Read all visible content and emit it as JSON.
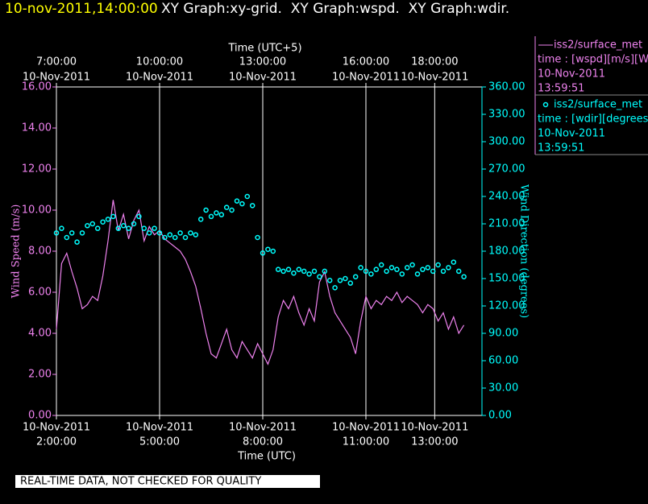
{
  "chart_data": {
    "type": "line",
    "title_time": "10-nov-2011,14:00:00",
    "title": "XY Graph:xy-grid.  XY Graph:wspd.  XY Graph:wdir.",
    "x_label": "Time (UTC)",
    "x2_label": "Time (UTC+5)",
    "y_label": "Wind Speed (m/s)",
    "y2_label": "Wind Direction (degrees)",
    "note": "REAL-TIME DATA, NOT CHECKED FOR QUALITY",
    "grid": true,
    "xlim": [
      2,
      14.375
    ],
    "xticks": [
      {
        "value": 2,
        "label": [
          "10-Nov-2011",
          "2:00:00"
        ]
      },
      {
        "value": 5,
        "label": [
          "10-Nov-2011",
          "5:00:00"
        ]
      },
      {
        "value": 8,
        "label": [
          "10-Nov-2011",
          "8:00:00"
        ]
      },
      {
        "value": 11,
        "label": [
          "10-Nov-2011",
          "11:00:00"
        ]
      },
      {
        "value": 13,
        "label": [
          "10-Nov-2011",
          "13:00:00"
        ]
      }
    ],
    "x2lim": [
      7,
      19.375
    ],
    "x2ticks": [
      {
        "value": 7,
        "label": [
          "7:00:00",
          "10-Nov-2011"
        ]
      },
      {
        "value": 10,
        "label": [
          "10:00:00",
          "10-Nov-2011"
        ]
      },
      {
        "value": 13,
        "label": [
          "13:00:00",
          "10-Nov-2011"
        ]
      },
      {
        "value": 16,
        "label": [
          "16:00:00",
          "10-Nov-2011"
        ]
      },
      {
        "value": 18,
        "label": [
          "18:00:00",
          "10-Nov-2011"
        ]
      }
    ],
    "ylim": [
      0,
      16
    ],
    "yticks": [
      {
        "value": 0,
        "label": "0.00"
      },
      {
        "value": 2,
        "label": "2.00"
      },
      {
        "value": 4,
        "label": "4.00"
      },
      {
        "value": 6,
        "label": "6.00"
      },
      {
        "value": 8,
        "label": "8.00"
      },
      {
        "value": 10,
        "label": "10.00"
      },
      {
        "value": 12,
        "label": "12.00"
      },
      {
        "value": 14,
        "label": "14.00"
      },
      {
        "value": 16,
        "label": "16.00"
      }
    ],
    "y2lim": [
      0,
      360
    ],
    "y2ticks": [
      {
        "value": 0,
        "label": "0.00"
      },
      {
        "value": 30,
        "label": "30.00"
      },
      {
        "value": 60,
        "label": "60.00"
      },
      {
        "value": 90,
        "label": "90.00"
      },
      {
        "value": 120,
        "label": "120.00"
      },
      {
        "value": 150,
        "label": "150.00"
      },
      {
        "value": 180,
        "label": "180.00"
      },
      {
        "value": 210,
        "label": "210.00"
      },
      {
        "value": 240,
        "label": "240.00"
      },
      {
        "value": 270,
        "label": "270.00"
      },
      {
        "value": 300,
        "label": "300.00"
      },
      {
        "value": 330,
        "label": "330.00"
      },
      {
        "value": 360,
        "label": "360.00"
      }
    ],
    "x": [
      2.0,
      2.15,
      2.3,
      2.45,
      2.6,
      2.75,
      2.9,
      3.05,
      3.2,
      3.35,
      3.5,
      3.65,
      3.8,
      3.95,
      4.1,
      4.25,
      4.4,
      4.55,
      4.7,
      4.85,
      5.0,
      5.15,
      5.3,
      5.45,
      5.6,
      5.75,
      5.9,
      6.05,
      6.2,
      6.35,
      6.5,
      6.65,
      6.8,
      6.95,
      7.1,
      7.25,
      7.4,
      7.55,
      7.7,
      7.85,
      8.0,
      8.15,
      8.3,
      8.45,
      8.6,
      8.75,
      8.9,
      9.05,
      9.2,
      9.35,
      9.5,
      9.65,
      9.8,
      9.95,
      10.1,
      10.25,
      10.4,
      10.55,
      10.7,
      10.85,
      11.0,
      11.15,
      11.3,
      11.45,
      11.6,
      11.75,
      11.9,
      12.05,
      12.2,
      12.35,
      12.5,
      12.65,
      12.8,
      12.95,
      13.1,
      13.25,
      13.4,
      13.55,
      13.7,
      13.85
    ],
    "series": [
      {
        "name": "iss2/surface_met",
        "legend_lines": [
          "time : [wspd][m/s][Wind",
          "10-Nov-2011",
          "13:59:51"
        ],
        "color": "#ee82ee",
        "axis": "y",
        "values": [
          4.2,
          7.4,
          7.9,
          7.0,
          6.2,
          5.2,
          5.4,
          5.8,
          5.6,
          6.8,
          8.5,
          10.5,
          9.0,
          9.8,
          8.6,
          9.5,
          10.0,
          8.5,
          9.2,
          8.8,
          9.0,
          8.6,
          8.4,
          8.2,
          8.0,
          7.6,
          7.0,
          6.3,
          5.2,
          4.0,
          3.0,
          2.8,
          3.5,
          4.2,
          3.2,
          2.8,
          3.6,
          3.2,
          2.8,
          3.5,
          3.0,
          2.5,
          3.2,
          4.8,
          5.6,
          5.2,
          5.8,
          5.0,
          4.4,
          5.2,
          4.6,
          6.5,
          7.0,
          5.8,
          5.0,
          4.6,
          4.2,
          3.8,
          3.0,
          4.6,
          5.8,
          5.2,
          5.6,
          5.4,
          5.8,
          5.6,
          6.0,
          5.5,
          5.8,
          5.6,
          5.4,
          5.0,
          5.4,
          5.2,
          4.6,
          5.0,
          4.2,
          4.8,
          4.0,
          4.4
        ]
      },
      {
        "name": "iss2/surface_met",
        "legend_lines": [
          "time : [wdir][degrees][V",
          "10-Nov-2011",
          "13:59:51"
        ],
        "color": "#00ffff",
        "axis": "y2",
        "values": [
          200,
          205,
          195,
          200,
          190,
          200,
          208,
          210,
          205,
          212,
          215,
          218,
          205,
          208,
          205,
          210,
          218,
          205,
          200,
          205,
          200,
          195,
          198,
          195,
          200,
          195,
          200,
          198,
          215,
          225,
          218,
          222,
          220,
          228,
          225,
          235,
          232,
          240,
          230,
          195,
          178,
          182,
          180,
          160,
          158,
          160,
          156,
          160,
          158,
          155,
          158,
          152,
          158,
          148,
          140,
          148,
          150,
          145,
          152,
          162,
          158,
          155,
          160,
          165,
          158,
          162,
          160,
          155,
          162,
          165,
          155,
          160,
          162,
          158,
          165,
          158,
          162,
          168,
          158,
          152
        ]
      }
    ]
  }
}
